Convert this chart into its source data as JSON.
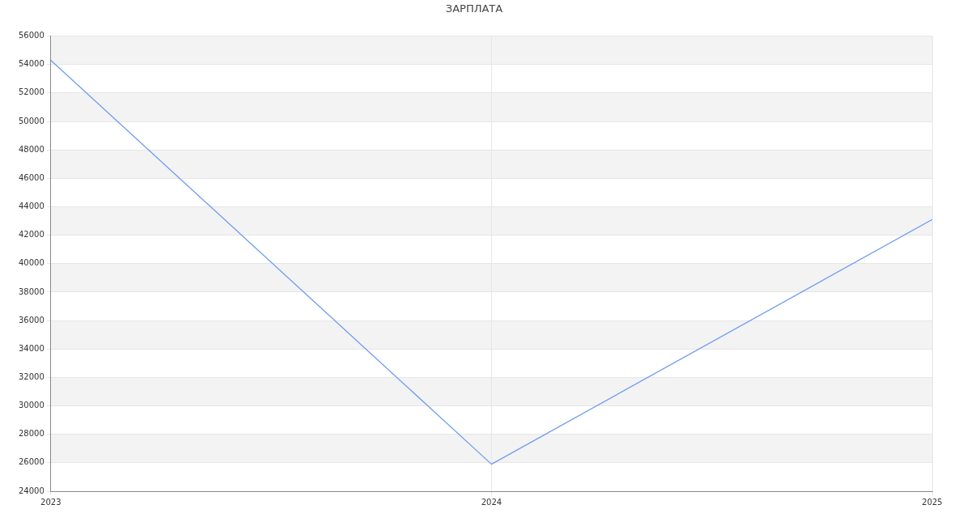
{
  "chart_data": {
    "type": "line",
    "title": "ЗАРПЛАТА",
    "x": [
      2023,
      2024,
      2025
    ],
    "series": [
      {
        "color": "#6f9cf2",
        "values": [
          54300,
          25900,
          43100
        ]
      }
    ],
    "xlim": [
      2023,
      2025
    ],
    "xticks": [
      2023,
      2024,
      2025
    ],
    "ylim": [
      24000,
      56000
    ],
    "yticks": [
      24000,
      26000,
      28000,
      30000,
      32000,
      34000,
      36000,
      38000,
      40000,
      42000,
      44000,
      46000,
      48000,
      50000,
      52000,
      54000,
      56000
    ],
    "grid": true,
    "legend": false,
    "marker": "none",
    "line_style": "solid"
  }
}
